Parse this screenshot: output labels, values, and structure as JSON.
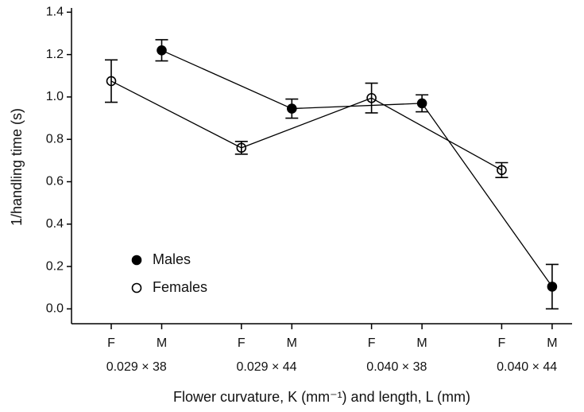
{
  "chart_data": {
    "type": "line",
    "ylabel": "1/handling time (s)",
    "xlabel": "Flower curvature, K (mm⁻¹) and length, L (mm)",
    "categories": [
      "0.029 × 38",
      "0.029 × 44",
      "0.040 × 38",
      "0.040 × 44"
    ],
    "x_labels": [
      "F",
      "M",
      "F",
      "M",
      "F",
      "M",
      "F",
      "M"
    ],
    "series": [
      {
        "name": "Males",
        "color": "#000000",
        "marker": "filled",
        "values": [
          1.22,
          0.945,
          0.97,
          0.105
        ],
        "errors": [
          0.05,
          0.045,
          0.04,
          0.105
        ]
      },
      {
        "name": "Females",
        "color": "#000000",
        "marker": "open",
        "values": [
          1.075,
          0.76,
          0.995,
          0.655
        ],
        "errors": [
          0.1,
          0.03,
          0.07,
          0.035
        ]
      }
    ],
    "ylim": [
      -0.07,
      1.42
    ],
    "yticks": [
      {
        "value": 0,
        "label": "0.0"
      },
      0.2,
      0.4,
      0.6,
      0.8,
      {
        "value": 1,
        "label": "1.0"
      },
      1.2,
      1.4
    ],
    "legend": "lower left"
  }
}
